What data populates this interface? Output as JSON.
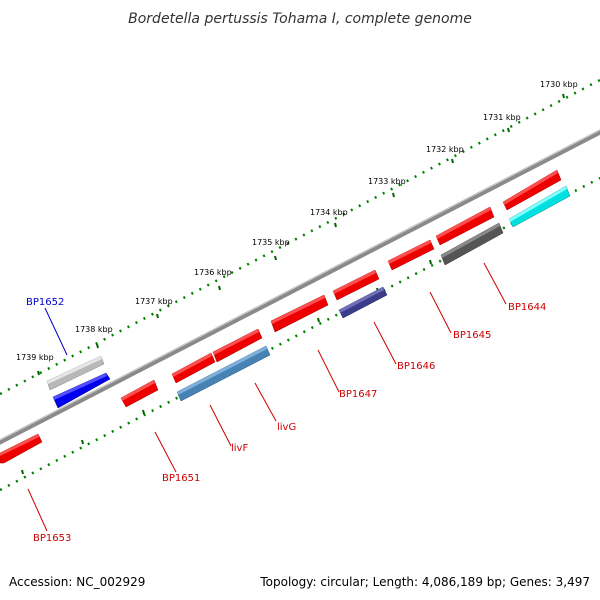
{
  "title": "Bordetella pertussis Tohama I, complete genome",
  "footer": {
    "accession": "Accession: NC_002929",
    "summary": "Topology: circular; Length: 4,086,189 bp; Genes: 3,497"
  },
  "ruler_labels": [
    "1730 kbp",
    "1731 kbp",
    "1732 kbp",
    "1733 kbp",
    "1734 kbp",
    "1735 kbp",
    "1736 kbp",
    "1737 kbp",
    "1738 kbp",
    "1739 kbp"
  ],
  "genes": [
    {
      "id": "BP1652",
      "label": "BP1652",
      "label_color": "#0000cc",
      "color": "#0000ee",
      "strand": "+"
    },
    {
      "id": "gray-plus",
      "label": "",
      "color": "#b8b8b8",
      "strand": "+"
    },
    {
      "id": "BP1653",
      "label": "BP1653",
      "label_color": "#cc0000",
      "color": "#ee0000",
      "strand": "-"
    },
    {
      "id": "BP1651",
      "label": "BP1651",
      "label_color": "#cc0000",
      "color": "#ee0000",
      "strand": "-"
    },
    {
      "id": "livF",
      "label": "livF",
      "label_color": "#cc0000",
      "color": "#4682b4",
      "strand": "-"
    },
    {
      "id": "livG",
      "label": "livG",
      "label_color": "#cc0000",
      "color": "#ee0000",
      "strand": "-"
    },
    {
      "id": "BP1647",
      "label": "BP1647",
      "label_color": "#cc0000",
      "color": "#ee0000",
      "strand": "-"
    },
    {
      "id": "BP1646",
      "label": "BP1646",
      "label_color": "#cc0000",
      "color": "#3c3c8c",
      "strand": "-"
    },
    {
      "id": "BP1645",
      "label": "BP1645",
      "label_color": "#cc0000",
      "color": "#ee0000",
      "strand": "-"
    },
    {
      "id": "BP1644",
      "label": "BP1644",
      "label_color": "#cc0000",
      "color": "#555555",
      "strand": "-"
    },
    {
      "id": "cyan-gene",
      "label": "",
      "color": "#00e0e0",
      "strand": "-"
    }
  ]
}
